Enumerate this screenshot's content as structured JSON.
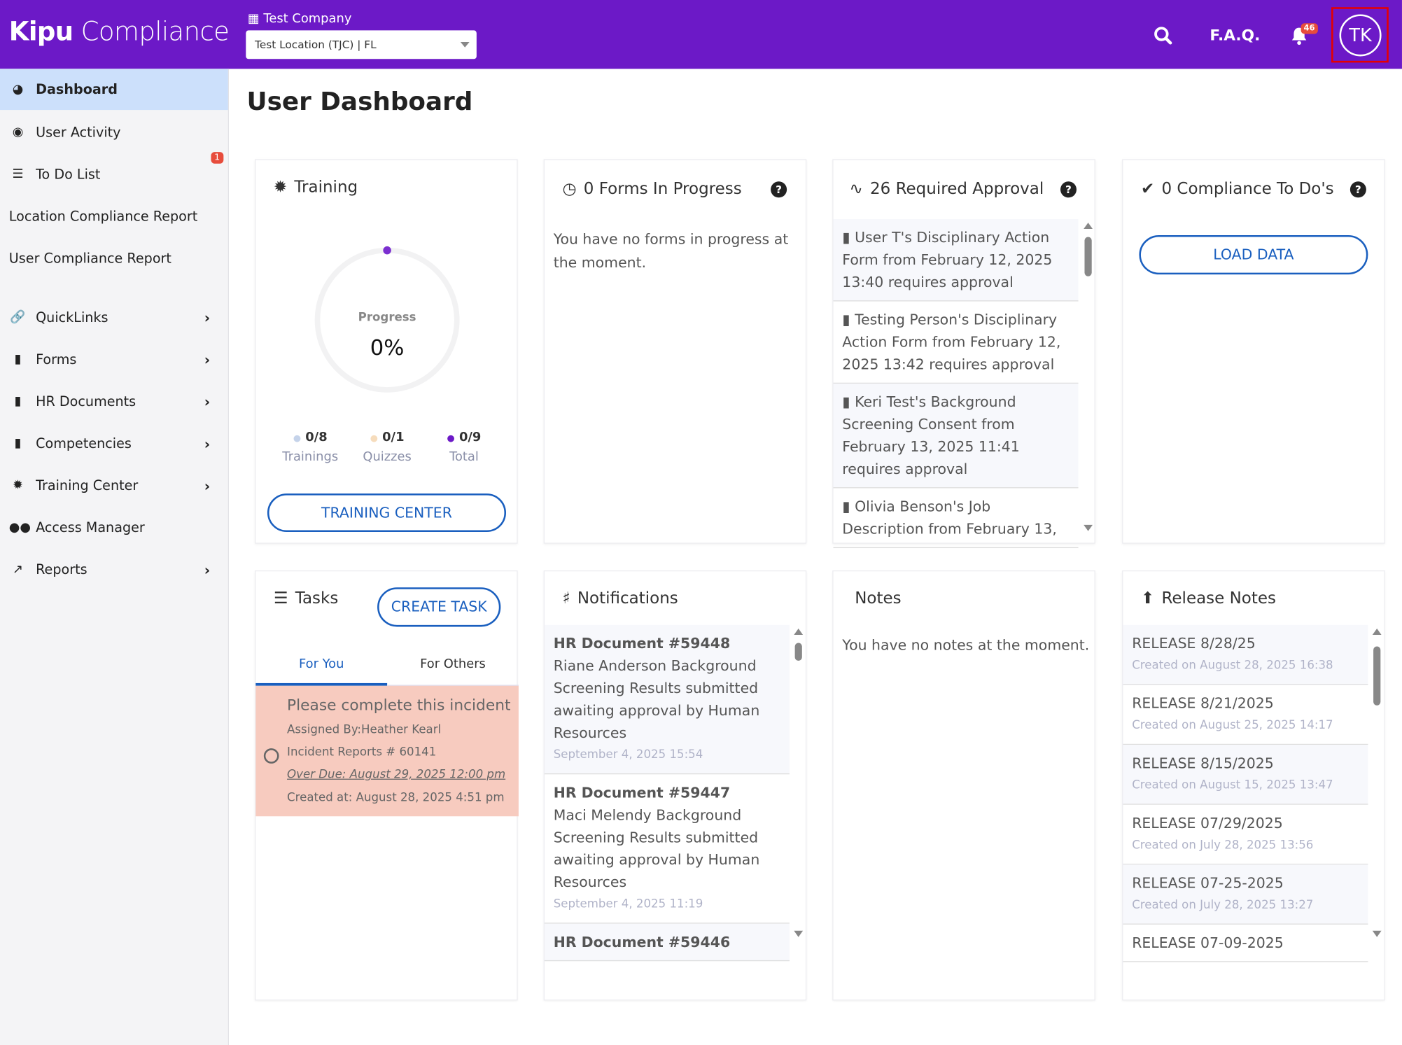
{
  "header": {
    "logo_bold": "Kipu",
    "logo_light": "Compliance",
    "company": "Test Company",
    "location_select": "Test Location (TJC) | FL",
    "faq": "F.A.Q.",
    "notification_count": "46",
    "avatar_initials": "TK",
    "brand_color": "#6c19c7"
  },
  "sidebar": {
    "items": [
      {
        "label": "Dashboard",
        "icon": "dashboard-icon",
        "active": true
      },
      {
        "label": "User Activity",
        "icon": "user-circle-icon"
      },
      {
        "label": "To Do List",
        "icon": "list-icon",
        "badge": "1"
      },
      {
        "label": "Location Compliance Report"
      },
      {
        "label": "User Compliance Report"
      },
      {
        "label": "QuickLinks",
        "icon": "link-icon",
        "chevron": true
      },
      {
        "label": "Forms",
        "icon": "file-icon",
        "chevron": true
      },
      {
        "label": "HR Documents",
        "icon": "id-badge-icon",
        "chevron": true
      },
      {
        "label": "Competencies",
        "icon": "clipboard-icon",
        "chevron": true
      },
      {
        "label": "Training Center",
        "icon": "gear-icon",
        "chevron": true
      },
      {
        "label": "Access Manager",
        "icon": "users-icon"
      },
      {
        "label": "Reports",
        "icon": "chart-line-icon",
        "chevron": true
      }
    ]
  },
  "page_title": "User Dashboard",
  "training": {
    "title": "Training",
    "progress_label": "Progress",
    "progress_value": "0%",
    "progress_fraction": 0,
    "stats": [
      {
        "value": "0/8",
        "label": "Trainings",
        "color": "#c5d3ea"
      },
      {
        "value": "0/1",
        "label": "Quizzes",
        "color": "#f6dcbc"
      },
      {
        "value": "0/9",
        "label": "Total",
        "color": "#6c19c7"
      }
    ],
    "button": "TRAINING CENTER"
  },
  "forms": {
    "title": "0 Forms In Progress",
    "empty": "You have no forms in progress at the moment."
  },
  "approval": {
    "title": "26 Required Approval",
    "items": [
      "User T's Disciplinary Action Form from February 12, 2025 13:40 requires approval",
      "Testing Person's Disciplinary Action Form from February 12, 2025 13:42 requires approval",
      "Keri Test's Background Screening Consent from February 13, 2025 11:41 requires approval",
      "Olivia Benson's Job Description from February 13,"
    ]
  },
  "compliance": {
    "title": "0 Compliance To Do's",
    "button": "LOAD DATA"
  },
  "tasks": {
    "title": "Tasks",
    "create": "CREATE TASK",
    "tabs": [
      "For You",
      "For Others"
    ],
    "item": {
      "title": "Please complete this incident",
      "assigned": "Assigned By:Heather Kearl",
      "ref": "Incident Reports # 60141",
      "due": "Over Due: August 29, 2025 12:00 pm",
      "created": "Created at: August 28, 2025 4:51 pm"
    }
  },
  "notifications": {
    "title": "Notifications",
    "items": [
      {
        "title": "HR Document #59448",
        "body": "Riane Anderson Background Screening Results submitted awaiting approval by Human Resources",
        "date": "September 4, 2025 15:54"
      },
      {
        "title": "HR Document #59447",
        "body": "Maci Melendy Background Screening Results submitted awaiting approval by Human Resources",
        "date": "September 4, 2025 11:19"
      },
      {
        "title": "HR Document #59446",
        "body": "",
        "date": ""
      }
    ]
  },
  "notes": {
    "title": "Notes",
    "empty": "You have no notes at the moment."
  },
  "release": {
    "title": "Release Notes",
    "items": [
      {
        "title": "RELEASE 8/28/25",
        "date": "Created on August 28, 2025 16:38"
      },
      {
        "title": "RELEASE 8/21/2025",
        "date": "Created on August 25, 2025 14:17"
      },
      {
        "title": "RELEASE 8/15/2025",
        "date": "Created on August 15, 2025 13:47"
      },
      {
        "title": "RELEASE 07/29/2025",
        "date": "Created on July 28, 2025 13:56"
      },
      {
        "title": "RELEASE 07-25-2025",
        "date": "Created on July 28, 2025 13:27"
      },
      {
        "title": "RELEASE 07-09-2025",
        "date": ""
      }
    ]
  }
}
